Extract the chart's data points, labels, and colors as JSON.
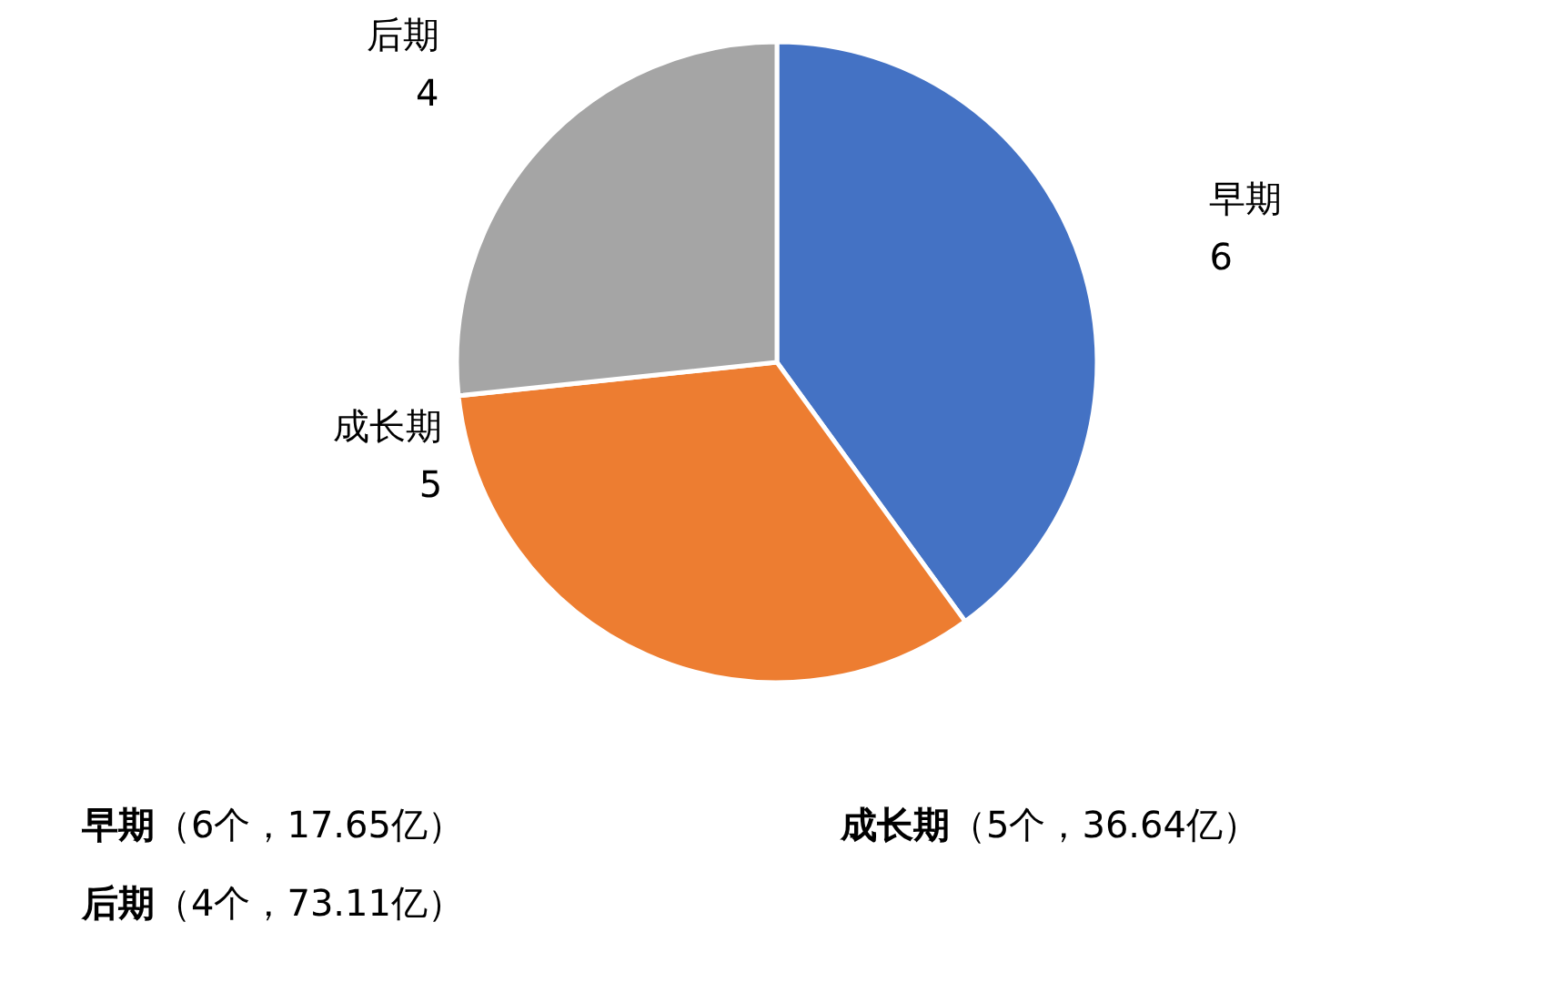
{
  "chart_data": {
    "type": "pie",
    "categories": [
      "早期",
      "成长期",
      "后期"
    ],
    "values": [
      6,
      5,
      4
    ],
    "colors": [
      "#4472c4",
      "#ed7d31",
      "#a5a5a5"
    ],
    "data_labels": true,
    "annotations": [
      "早期（6个，17.65亿）",
      "成长期（5个，36.64亿）",
      "后期（4个，73.11亿）"
    ]
  }
}
